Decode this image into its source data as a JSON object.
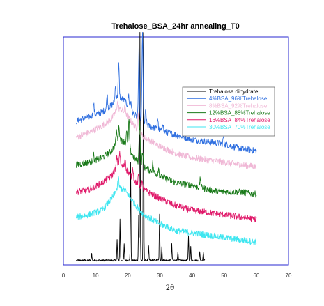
{
  "chart_data": {
    "type": "line",
    "title": "Trehalose_BSA_24hr annealing_T0",
    "xlabel": "2θ",
    "ylabel": "",
    "xlim": [
      0,
      70
    ],
    "ylim": [
      0,
      100
    ],
    "x_ticks": [
      "0",
      "10",
      "20",
      "30",
      "40",
      "50",
      "60",
      "70"
    ],
    "grid": false,
    "legend_position": "top-right",
    "series": [
      {
        "name": "Trehalose dihydrate",
        "color": "#000000",
        "x_range": [
          4,
          44
        ],
        "baseline": 2,
        "peaks": [
          [
            8.8,
            3
          ],
          [
            16.7,
            9
          ],
          [
            17.6,
            18
          ],
          [
            18.9,
            7
          ],
          [
            20.9,
            43
          ],
          [
            23.4,
            20
          ],
          [
            23.8,
            100
          ],
          [
            24.9,
            100
          ],
          [
            26.5,
            6
          ],
          [
            29.9,
            20
          ],
          [
            30.6,
            6
          ],
          [
            33.7,
            7
          ],
          [
            35.6,
            4
          ],
          [
            38.9,
            11
          ],
          [
            39.6,
            6
          ],
          [
            42.4,
            4
          ],
          [
            43.5,
            4
          ]
        ]
      },
      {
        "name": "4%BSA_96%Trehalose",
        "color": "#2f6fe0",
        "x_range": [
          4,
          60
        ],
        "points": [
          [
            4,
            63
          ],
          [
            8,
            65
          ],
          [
            12,
            67
          ],
          [
            15,
            70
          ],
          [
            17,
            74
          ],
          [
            19,
            72
          ],
          [
            22,
            66
          ],
          [
            25,
            62
          ],
          [
            30,
            59
          ],
          [
            35,
            57
          ],
          [
            40,
            55
          ],
          [
            45,
            54
          ],
          [
            50,
            53
          ],
          [
            55,
            51
          ],
          [
            60,
            50
          ]
        ],
        "peaks": [
          [
            9.4,
            5
          ],
          [
            13.6,
            6
          ],
          [
            16.2,
            6
          ],
          [
            17.2,
            14
          ],
          [
            20.3,
            5
          ],
          [
            21.0,
            4
          ],
          [
            23.5,
            30
          ],
          [
            24.6,
            40
          ],
          [
            25.6,
            6
          ],
          [
            29.3,
            5
          ],
          [
            30.9,
            4
          ],
          [
            49.8,
            3
          ]
        ]
      },
      {
        "name": "8%BSA_92%Trehalose",
        "color": "#f0b8d6",
        "x_range": [
          4,
          60
        ],
        "points": [
          [
            4,
            56
          ],
          [
            8,
            58
          ],
          [
            12,
            61
          ],
          [
            15,
            64
          ],
          [
            17,
            69
          ],
          [
            19,
            67
          ],
          [
            22,
            61
          ],
          [
            25,
            56
          ],
          [
            30,
            52
          ],
          [
            35,
            49
          ],
          [
            40,
            47
          ],
          [
            45,
            46
          ],
          [
            50,
            45
          ],
          [
            55,
            44
          ],
          [
            60,
            43
          ]
        ],
        "peaks": [
          [
            16.8,
            3
          ],
          [
            19.2,
            3
          ],
          [
            23.2,
            8
          ]
        ]
      },
      {
        "name": "12%BSA_88%Trehalose",
        "color": "#1a7a1a",
        "x_range": [
          4,
          60
        ],
        "points": [
          [
            4,
            44
          ],
          [
            8,
            45
          ],
          [
            12,
            47
          ],
          [
            15,
            50
          ],
          [
            17,
            55
          ],
          [
            19,
            54
          ],
          [
            22,
            47
          ],
          [
            25,
            43
          ],
          [
            30,
            39
          ],
          [
            35,
            36
          ],
          [
            40,
            35
          ],
          [
            45,
            33
          ],
          [
            50,
            32
          ],
          [
            55,
            32
          ],
          [
            60,
            31
          ]
        ],
        "peaks": [
          [
            9.3,
            3
          ],
          [
            16.5,
            5
          ],
          [
            17.3,
            6
          ],
          [
            19.7,
            6
          ],
          [
            20.4,
            13
          ],
          [
            23.7,
            20
          ],
          [
            24.6,
            6
          ],
          [
            27.8,
            4
          ],
          [
            29.6,
            3
          ],
          [
            42.6,
            4
          ]
        ]
      },
      {
        "name": "16%BSA_84%Trehalose",
        "color": "#e01a6a",
        "x_range": [
          4,
          60
        ],
        "points": [
          [
            4,
            32
          ],
          [
            8,
            33
          ],
          [
            12,
            36
          ],
          [
            15,
            39
          ],
          [
            17,
            44
          ],
          [
            19,
            43
          ],
          [
            22,
            37
          ],
          [
            25,
            33
          ],
          [
            30,
            29
          ],
          [
            35,
            26
          ],
          [
            40,
            24
          ],
          [
            45,
            23
          ],
          [
            50,
            22
          ],
          [
            55,
            21
          ],
          [
            60,
            20
          ]
        ],
        "peaks": [
          [
            16.6,
            4
          ],
          [
            17.5,
            6
          ],
          [
            19.2,
            4
          ],
          [
            21.6,
            5
          ],
          [
            23.4,
            4
          ],
          [
            24.4,
            3
          ]
        ]
      },
      {
        "name": "30%BSA_70%Trehalose",
        "color": "#3fe6f0",
        "x_range": [
          4,
          60
        ],
        "points": [
          [
            4,
            21
          ],
          [
            8,
            22
          ],
          [
            12,
            24
          ],
          [
            15,
            29
          ],
          [
            17,
            34
          ],
          [
            19,
            33
          ],
          [
            22,
            27
          ],
          [
            25,
            22
          ],
          [
            30,
            18
          ],
          [
            35,
            15
          ],
          [
            40,
            14
          ],
          [
            45,
            13
          ],
          [
            50,
            12
          ],
          [
            55,
            11
          ],
          [
            60,
            10
          ]
        ],
        "peaks": [
          [
            17.1,
            4
          ]
        ]
      }
    ]
  },
  "colors": {
    "frame": "#2a2ad0",
    "axis_text": "#333333"
  }
}
